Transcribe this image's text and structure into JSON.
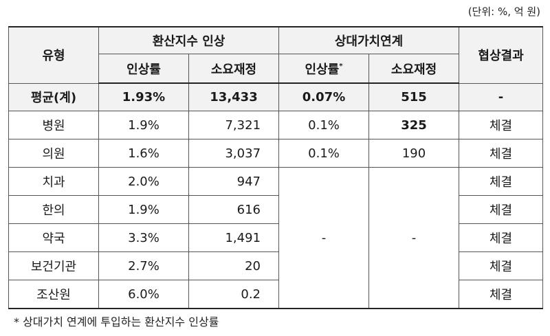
{
  "unit_note": "(단위: %, 억 원)",
  "header": {
    "type": "유형",
    "group1": "환산지수 인상",
    "group2": "상대가치연계",
    "result": "협상결과",
    "rate": "인상률",
    "rate_marker": "*",
    "budget": "소요재정"
  },
  "average": {
    "label": "평균(계)",
    "rate1": "1.93%",
    "budget1": "13,433",
    "rate2": "0.07%",
    "budget2": "515",
    "result": "-"
  },
  "rows": [
    {
      "label": "병원",
      "rate1": "1.9%",
      "budget1": "7,321",
      "rate2": "0.1%",
      "budget2": "325",
      "result": "체결"
    },
    {
      "label": "의원",
      "rate1": "1.6%",
      "budget1": "3,037",
      "rate2": "0.1%",
      "budget2": "190",
      "result": "체결"
    },
    {
      "label": "치과",
      "rate1": "2.0%",
      "budget1": "947",
      "result": "체결"
    },
    {
      "label": "한의",
      "rate1": "1.9%",
      "budget1": "616",
      "result": "체결"
    },
    {
      "label": "약국",
      "rate1": "3.3%",
      "budget1": "1,491",
      "result": "체결"
    },
    {
      "label": "보건기관",
      "rate1": "2.7%",
      "budget1": "20",
      "result": "체결"
    },
    {
      "label": "조산원",
      "rate1": "6.0%",
      "budget1": "0.2",
      "result": "체결"
    }
  ],
  "merged_rate2": "-",
  "merged_budget2": "-",
  "footnote": "* 상대가치 연계에 투입하는 환산지수 인상률"
}
